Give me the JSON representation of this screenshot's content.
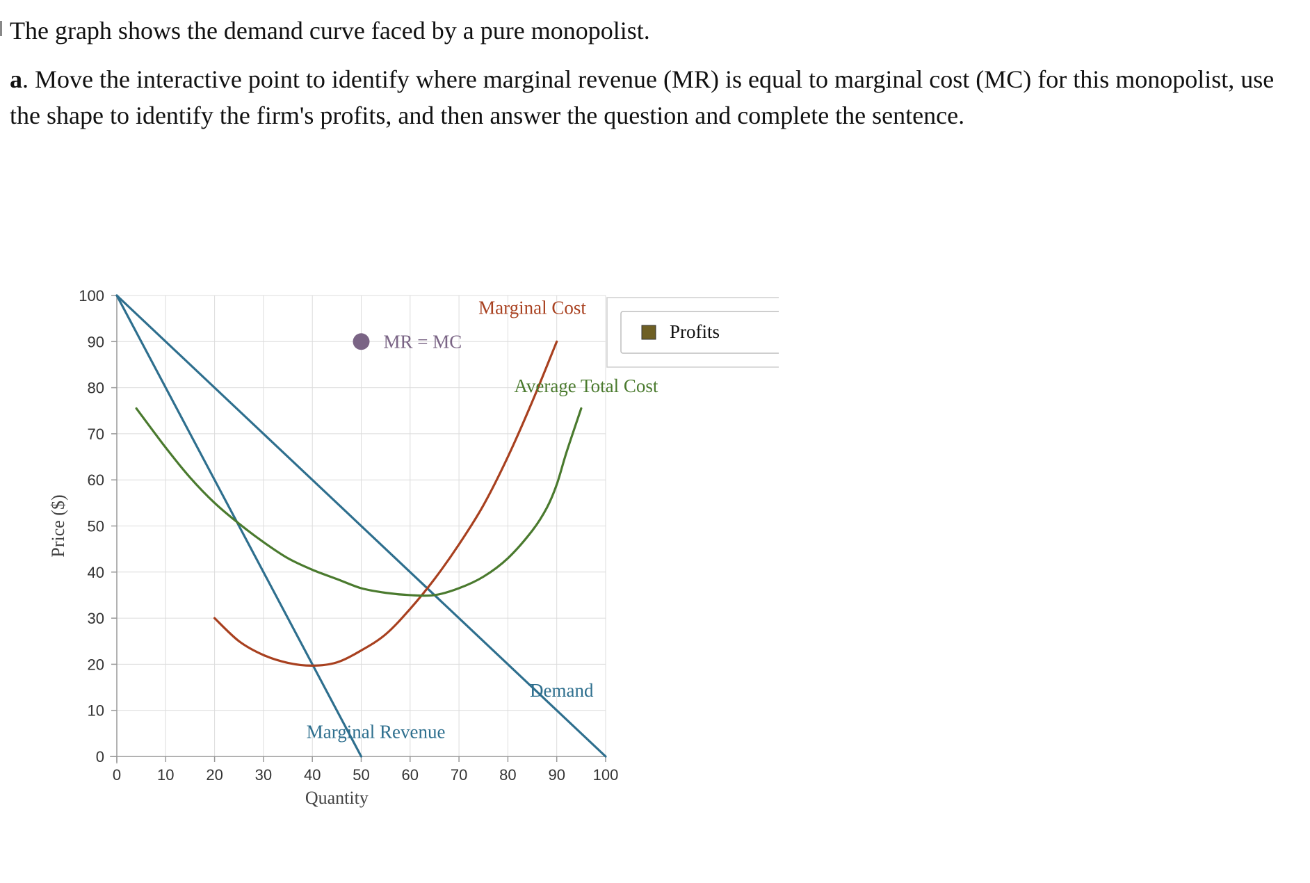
{
  "prompt": {
    "intro": "The graph shows the demand curve faced by a pure monopolist.",
    "part_label": "a",
    "part_text": ". Move the interactive point to identify where marginal revenue (MR) is equal to marginal cost (MC) for this monopolist, use the shape to identify the firm's profits, and then answer the question and complete the sentence."
  },
  "chart_data": {
    "type": "line",
    "xlabel": "Quantity",
    "ylabel": "Price ($)",
    "xlim": [
      0,
      100
    ],
    "ylim": [
      0,
      100
    ],
    "xticks": [
      0,
      10,
      20,
      30,
      40,
      50,
      60,
      70,
      80,
      90,
      100
    ],
    "yticks": [
      0,
      10,
      20,
      30,
      40,
      50,
      60,
      70,
      80,
      90,
      100
    ],
    "grid": true,
    "series": [
      {
        "name": "Demand",
        "color": "#2e6f8e",
        "x": [
          0,
          100
        ],
        "y": [
          100,
          0
        ]
      },
      {
        "name": "Marginal Revenue",
        "color": "#2e6f8e",
        "x": [
          0,
          50
        ],
        "y": [
          100,
          0
        ]
      },
      {
        "name": "Marginal Cost",
        "color": "#a8401f",
        "x": [
          20,
          25,
          30,
          35,
          40,
          45,
          50,
          55,
          60,
          65,
          70,
          75,
          80,
          85,
          90
        ],
        "y": [
          30,
          25,
          22,
          20.3,
          19.7,
          20.4,
          23,
          26.5,
          32,
          38.5,
          46,
          54.5,
          65,
          77,
          90
        ]
      },
      {
        "name": "Average Total Cost",
        "color": "#4a7a2e",
        "x": [
          4,
          10,
          15,
          20,
          25,
          30,
          35,
          40,
          45,
          50,
          55,
          60,
          65,
          70,
          75,
          80,
          85,
          88,
          90,
          92,
          95
        ],
        "y": [
          75.5,
          67,
          60.5,
          55,
          50.5,
          46.5,
          43,
          40.5,
          38.5,
          36.5,
          35.5,
          35,
          35,
          36.5,
          39,
          43,
          49,
          54,
          59,
          66,
          75.5
        ]
      }
    ],
    "annotations": [
      {
        "text": "Marginal Cost",
        "x": 85,
        "y": 96,
        "color": "#a8401f"
      },
      {
        "text": "Average Total Cost",
        "x": 96,
        "y": 79,
        "color": "#4a7a2e"
      },
      {
        "text": "Demand",
        "x": 91,
        "y": 13,
        "color": "#2e6f8e"
      },
      {
        "text": "Marginal Revenue",
        "x": 53,
        "y": 4,
        "color": "#2e6f8e"
      }
    ],
    "interactive_point": {
      "label": "MR = MC",
      "x": 50,
      "y": 90,
      "color": "#7a6485"
    },
    "legend": {
      "placement": "top-right",
      "items": [
        {
          "label": "Profits",
          "color": "#6e5f24"
        }
      ]
    }
  }
}
